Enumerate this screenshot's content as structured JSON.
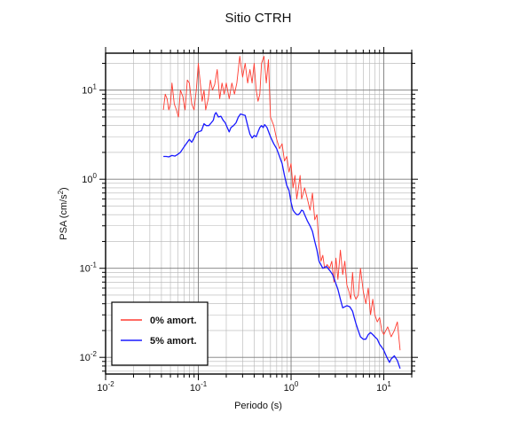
{
  "chart_data": {
    "type": "line",
    "title": "Sitio CTRH",
    "xlabel": "Periodo (s)",
    "ylabel_main": "PSA (cm/s",
    "ylabel_exp": "2",
    "ylabel_tail": ")",
    "x_scale": "log",
    "y_scale": "log",
    "xlim": [
      0.01,
      20
    ],
    "ylim": [
      0.0065,
      26
    ],
    "grid": true,
    "legend_position": "bottom-left",
    "x_ticks": [
      {
        "base": "10",
        "exp": "-2",
        "value": 0.01
      },
      {
        "base": "10",
        "exp": "-1",
        "value": 0.1
      },
      {
        "base": "10",
        "exp": "0",
        "value": 1
      },
      {
        "base": "10",
        "exp": "1",
        "value": 10
      }
    ],
    "y_ticks": [
      {
        "base": "10",
        "exp": "-2",
        "value": 0.01
      },
      {
        "base": "10",
        "exp": "-1",
        "value": 0.1
      },
      {
        "base": "10",
        "exp": "0",
        "value": 1
      },
      {
        "base": "10",
        "exp": "1",
        "value": 10
      }
    ],
    "series": [
      {
        "name": "0% amort.",
        "color": "#ff3b30",
        "points": [
          [
            0.042,
            6.0
          ],
          [
            0.044,
            9.0
          ],
          [
            0.046,
            8.0
          ],
          [
            0.048,
            6.0
          ],
          [
            0.05,
            7.0
          ],
          [
            0.052,
            12.0
          ],
          [
            0.055,
            7.0
          ],
          [
            0.058,
            6.0
          ],
          [
            0.061,
            5.0
          ],
          [
            0.064,
            10.0
          ],
          [
            0.068,
            8.5
          ],
          [
            0.072,
            6.0
          ],
          [
            0.076,
            13.0
          ],
          [
            0.08,
            12.0
          ],
          [
            0.085,
            7.0
          ],
          [
            0.09,
            6.0
          ],
          [
            0.095,
            10.0
          ],
          [
            0.1,
            20.0
          ],
          [
            0.105,
            12.0
          ],
          [
            0.11,
            7.5
          ],
          [
            0.115,
            10.0
          ],
          [
            0.12,
            6.0
          ],
          [
            0.128,
            8.0
          ],
          [
            0.135,
            13.0
          ],
          [
            0.142,
            10.0
          ],
          [
            0.15,
            11.5
          ],
          [
            0.16,
            17.0
          ],
          [
            0.17,
            8.0
          ],
          [
            0.18,
            12.0
          ],
          [
            0.19,
            9.0
          ],
          [
            0.2,
            12.0
          ],
          [
            0.215,
            8.0
          ],
          [
            0.23,
            12.0
          ],
          [
            0.245,
            9.0
          ],
          [
            0.26,
            12.0
          ],
          [
            0.28,
            24.0
          ],
          [
            0.3,
            14.0
          ],
          [
            0.32,
            20.0
          ],
          [
            0.34,
            12.0
          ],
          [
            0.36,
            17.0
          ],
          [
            0.38,
            12.0
          ],
          [
            0.4,
            20.0
          ],
          [
            0.42,
            10.0
          ],
          [
            0.44,
            7.5
          ],
          [
            0.46,
            9.0
          ],
          [
            0.48,
            20.0
          ],
          [
            0.51,
            24.0
          ],
          [
            0.54,
            12.0
          ],
          [
            0.57,
            22.0
          ],
          [
            0.6,
            5.0
          ],
          [
            0.65,
            4.0
          ],
          [
            0.7,
            2.8
          ],
          [
            0.75,
            2.2
          ],
          [
            0.8,
            2.5
          ],
          [
            0.85,
            1.6
          ],
          [
            0.9,
            1.8
          ],
          [
            0.95,
            1.2
          ],
          [
            1.0,
            1.5
          ],
          [
            1.05,
            0.8
          ],
          [
            1.1,
            1.1
          ],
          [
            1.15,
            0.6
          ],
          [
            1.2,
            0.8
          ],
          [
            1.25,
            1.1
          ],
          [
            1.3,
            0.6
          ],
          [
            1.4,
            0.8
          ],
          [
            1.5,
            0.6
          ],
          [
            1.6,
            0.45
          ],
          [
            1.7,
            0.7
          ],
          [
            1.8,
            0.35
          ],
          [
            1.9,
            0.4
          ],
          [
            2.0,
            0.18
          ],
          [
            2.1,
            0.12
          ],
          [
            2.2,
            0.14
          ],
          [
            2.3,
            0.1
          ],
          [
            2.45,
            0.11
          ],
          [
            2.6,
            0.1
          ],
          [
            2.75,
            0.12
          ],
          [
            2.9,
            0.07
          ],
          [
            3.05,
            0.13
          ],
          [
            3.2,
            0.075
          ],
          [
            3.4,
            0.16
          ],
          [
            3.6,
            0.085
          ],
          [
            3.8,
            0.12
          ],
          [
            4.0,
            0.065
          ],
          [
            4.2,
            0.055
          ],
          [
            4.4,
            0.045
          ],
          [
            4.6,
            0.09
          ],
          [
            4.8,
            0.05
          ],
          [
            5.0,
            0.045
          ],
          [
            5.3,
            0.05
          ],
          [
            5.6,
            0.1
          ],
          [
            6.0,
            0.055
          ],
          [
            6.4,
            0.04
          ],
          [
            6.8,
            0.06
          ],
          [
            7.2,
            0.03
          ],
          [
            7.6,
            0.045
          ],
          [
            8.0,
            0.03
          ],
          [
            8.5,
            0.025
          ],
          [
            9.0,
            0.028
          ],
          [
            9.5,
            0.02
          ],
          [
            10.0,
            0.018
          ],
          [
            11.0,
            0.022
          ],
          [
            12.0,
            0.017
          ],
          [
            13.0,
            0.02
          ],
          [
            14.0,
            0.025
          ],
          [
            15.0,
            0.012
          ]
        ]
      },
      {
        "name": "5% amort.",
        "color": "#1a1aff",
        "points": [
          [
            0.042,
            1.8
          ],
          [
            0.045,
            1.8
          ],
          [
            0.048,
            1.78
          ],
          [
            0.052,
            1.85
          ],
          [
            0.056,
            1.82
          ],
          [
            0.06,
            1.9
          ],
          [
            0.064,
            2.0
          ],
          [
            0.068,
            2.2
          ],
          [
            0.072,
            2.4
          ],
          [
            0.076,
            2.6
          ],
          [
            0.08,
            2.8
          ],
          [
            0.085,
            2.6
          ],
          [
            0.09,
            2.9
          ],
          [
            0.095,
            3.3
          ],
          [
            0.1,
            3.4
          ],
          [
            0.108,
            3.5
          ],
          [
            0.115,
            4.2
          ],
          [
            0.122,
            4.0
          ],
          [
            0.13,
            4.0
          ],
          [
            0.138,
            4.3
          ],
          [
            0.145,
            4.6
          ],
          [
            0.15,
            5.3
          ],
          [
            0.155,
            5.6
          ],
          [
            0.165,
            5.0
          ],
          [
            0.175,
            5.1
          ],
          [
            0.185,
            4.6
          ],
          [
            0.195,
            4.3
          ],
          [
            0.205,
            3.8
          ],
          [
            0.215,
            3.4
          ],
          [
            0.225,
            3.8
          ],
          [
            0.24,
            4.0
          ],
          [
            0.255,
            4.3
          ],
          [
            0.27,
            5.0
          ],
          [
            0.285,
            5.4
          ],
          [
            0.3,
            5.3
          ],
          [
            0.32,
            5.2
          ],
          [
            0.34,
            4.0
          ],
          [
            0.36,
            3.2
          ],
          [
            0.38,
            2.9
          ],
          [
            0.4,
            3.1
          ],
          [
            0.42,
            3.0
          ],
          [
            0.44,
            3.4
          ],
          [
            0.46,
            3.8
          ],
          [
            0.48,
            4.0
          ],
          [
            0.5,
            3.8
          ],
          [
            0.52,
            4.1
          ],
          [
            0.55,
            3.8
          ],
          [
            0.6,
            3.0
          ],
          [
            0.65,
            2.5
          ],
          [
            0.7,
            2.2
          ],
          [
            0.75,
            1.8
          ],
          [
            0.8,
            1.5
          ],
          [
            0.85,
            1.1
          ],
          [
            0.9,
            0.85
          ],
          [
            0.95,
            0.75
          ],
          [
            1.0,
            0.55
          ],
          [
            1.05,
            0.45
          ],
          [
            1.1,
            0.42
          ],
          [
            1.15,
            0.4
          ],
          [
            1.2,
            0.4
          ],
          [
            1.25,
            0.42
          ],
          [
            1.3,
            0.45
          ],
          [
            1.35,
            0.44
          ],
          [
            1.4,
            0.4
          ],
          [
            1.5,
            0.34
          ],
          [
            1.6,
            0.3
          ],
          [
            1.7,
            0.26
          ],
          [
            1.8,
            0.2
          ],
          [
            1.9,
            0.16
          ],
          [
            2.0,
            0.12
          ],
          [
            2.2,
            0.1
          ],
          [
            2.4,
            0.105
          ],
          [
            2.6,
            0.095
          ],
          [
            2.8,
            0.085
          ],
          [
            3.0,
            0.07
          ],
          [
            3.2,
            0.058
          ],
          [
            3.4,
            0.045
          ],
          [
            3.6,
            0.036
          ],
          [
            3.8,
            0.037
          ],
          [
            4.0,
            0.038
          ],
          [
            4.3,
            0.037
          ],
          [
            4.6,
            0.033
          ],
          [
            4.8,
            0.028
          ],
          [
            5.0,
            0.024
          ],
          [
            5.3,
            0.02
          ],
          [
            5.6,
            0.017
          ],
          [
            6.0,
            0.016
          ],
          [
            6.4,
            0.016
          ],
          [
            6.8,
            0.018
          ],
          [
            7.2,
            0.019
          ],
          [
            7.6,
            0.018
          ],
          [
            8.0,
            0.017
          ],
          [
            8.5,
            0.016
          ],
          [
            9.0,
            0.014
          ],
          [
            9.5,
            0.013
          ],
          [
            10.0,
            0.012
          ],
          [
            10.8,
            0.01
          ],
          [
            11.5,
            0.0088
          ],
          [
            12.0,
            0.0096
          ],
          [
            13.0,
            0.0104
          ],
          [
            14.0,
            0.0092
          ],
          [
            15.0,
            0.0075
          ]
        ]
      }
    ]
  }
}
